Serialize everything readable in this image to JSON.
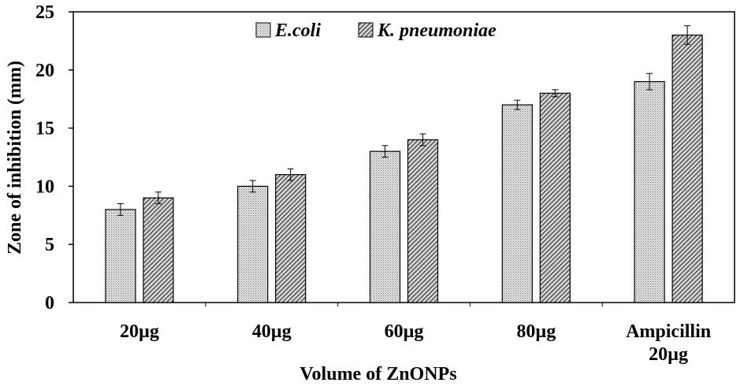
{
  "chart_data": {
    "type": "bar",
    "title": "",
    "xlabel": "Volume of ZnONPs",
    "ylabel": "Zone of inhibition (mm)",
    "categories": [
      [
        "20µg"
      ],
      [
        "40µg"
      ],
      [
        "60µg"
      ],
      [
        "80µg"
      ],
      [
        "Ampicillin",
        "20µg"
      ]
    ],
    "series": [
      {
        "name": "E.coli",
        "values": [
          8,
          10,
          13,
          17,
          19
        ],
        "errors": [
          0.5,
          0.5,
          0.5,
          0.4,
          0.7
        ],
        "pattern": "dots"
      },
      {
        "name": "K. pneumoniae",
        "values": [
          9,
          11,
          14,
          18,
          23
        ],
        "errors": [
          0.5,
          0.5,
          0.5,
          0.3,
          0.8
        ],
        "pattern": "diagonal"
      }
    ],
    "ylim": [
      0,
      25
    ],
    "yticks": [
      0,
      5,
      10,
      15,
      20,
      25
    ],
    "grid": false,
    "legend": "top-center",
    "colors": {
      "bar_fill": "#e0e0e0",
      "pattern_dark": "#6a6a6a",
      "axis": "#000000"
    }
  }
}
